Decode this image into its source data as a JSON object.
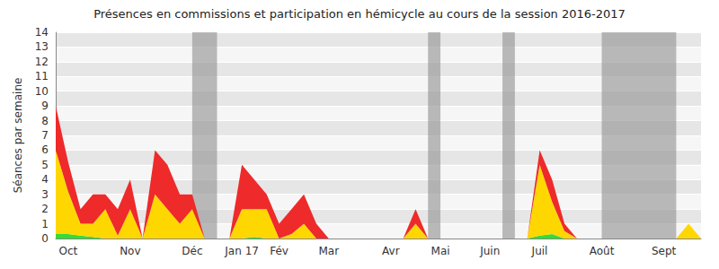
{
  "chart_data": {
    "type": "area",
    "title": "Présences en commissions et participation en hémicycle au cours de la session 2016-2017",
    "y_label": "Séances par semaine",
    "stacked": true,
    "grid": true,
    "categories": [
      null,
      "Oct",
      null,
      null,
      null,
      null,
      "Nov",
      null,
      null,
      null,
      null,
      "Déc",
      null,
      null,
      null,
      "Jan 17",
      null,
      null,
      "Fév",
      null,
      null,
      null,
      "Mar",
      null,
      null,
      null,
      null,
      "Avr",
      null,
      null,
      null,
      "Mai",
      null,
      null,
      null,
      "Juin",
      null,
      null,
      null,
      "Juil",
      null,
      null,
      null,
      null,
      "Août",
      null,
      null,
      null,
      null,
      "Sept",
      null,
      null,
      null
    ],
    "series": [
      {
        "color": "#33dd33",
        "values": [
          0.3,
          0.3,
          0.2,
          0.1,
          0,
          0,
          0,
          0,
          0,
          0,
          0,
          0,
          0,
          0,
          0,
          0,
          0.1,
          0,
          0,
          0,
          0,
          0,
          0,
          0,
          0,
          0,
          0,
          0,
          0,
          0,
          0,
          0,
          0,
          0,
          0,
          0,
          0,
          0,
          0,
          0.2,
          0.3,
          0,
          0,
          0,
          0,
          0,
          0,
          0,
          0,
          0,
          0,
          0,
          0
        ]
      },
      {
        "color": "#ffd700",
        "values": [
          5.7,
          2.9,
          0.8,
          0.9,
          2,
          0.2,
          2,
          0,
          3,
          2,
          1,
          2,
          0,
          0,
          0,
          2,
          1.9,
          2,
          0,
          0.3,
          1,
          0,
          0,
          0,
          0,
          0,
          0,
          0,
          0,
          1,
          0,
          0,
          0,
          0,
          0,
          0,
          0,
          0,
          0,
          4.8,
          2.2,
          0.5,
          0,
          0,
          0,
          0,
          0,
          0,
          0,
          0,
          0,
          1,
          0
        ]
      },
      {
        "color": "#ee2a2a",
        "values": [
          3,
          2,
          1,
          2,
          1,
          1.8,
          2,
          0,
          3,
          3,
          2,
          1,
          0,
          0,
          0,
          3,
          2,
          1,
          1,
          1.7,
          2,
          1,
          0,
          0,
          0,
          0,
          0,
          0,
          0,
          1,
          0,
          0,
          0,
          0,
          0,
          0,
          0,
          0,
          0,
          1,
          1.5,
          0.5,
          0,
          0,
          0,
          0,
          0,
          0,
          0,
          0,
          0,
          0,
          0
        ]
      }
    ],
    "recess_weeks": [
      [
        11,
        13
      ],
      [
        30,
        31
      ],
      [
        36,
        37
      ],
      [
        44,
        50
      ]
    ],
    "ylim": [
      0,
      14
    ],
    "yticks": [
      0,
      1,
      2,
      3,
      4,
      5,
      6,
      7,
      8,
      9,
      10,
      11,
      12,
      13,
      14
    ]
  }
}
